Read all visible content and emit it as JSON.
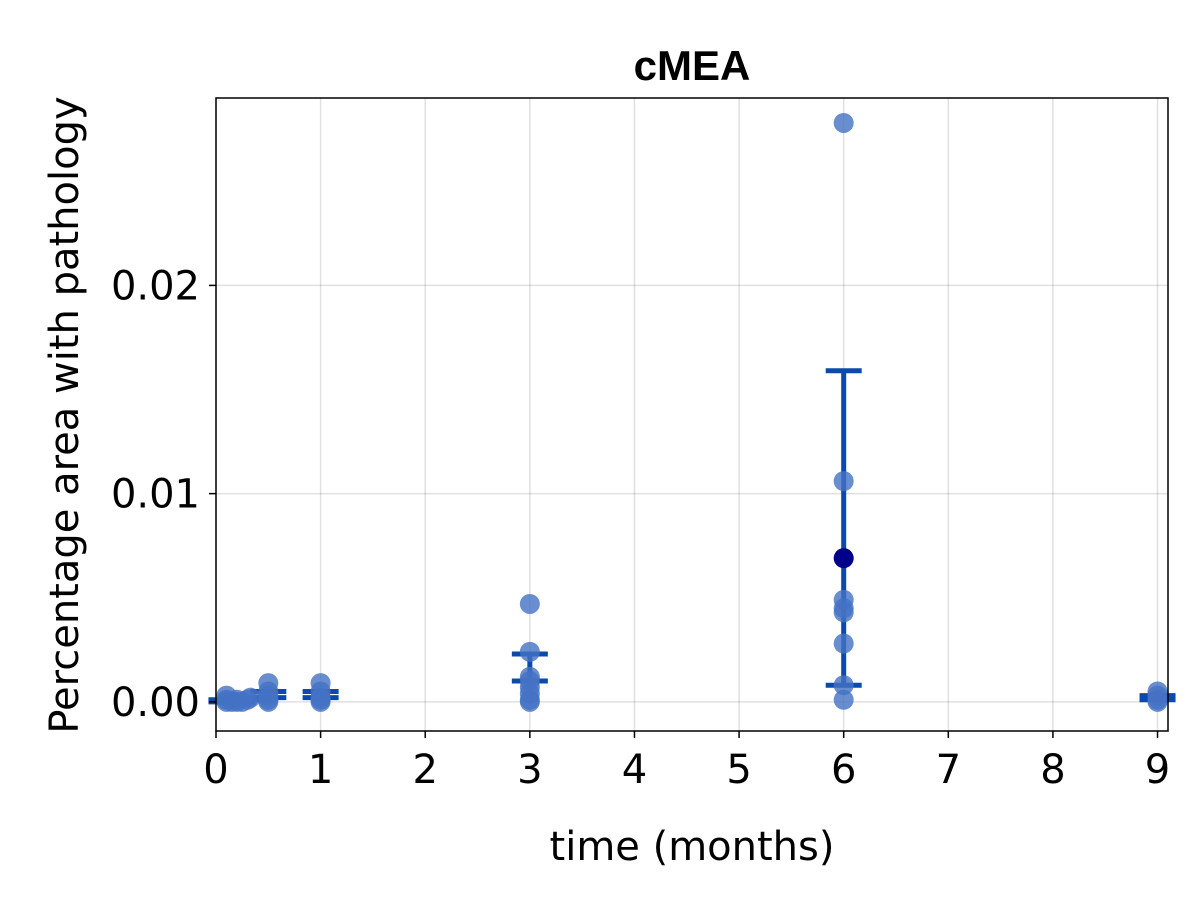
{
  "chart_data": {
    "type": "scatter",
    "title": "cMEA",
    "xlabel": "time (months)",
    "ylabel": "Percentage area with pathology",
    "xlim": [
      0,
      9.1
    ],
    "ylim": [
      -0.0014,
      0.029
    ],
    "xticks": [
      0,
      1,
      2,
      3,
      4,
      5,
      6,
      7,
      8,
      9
    ],
    "xtick_labels": [
      "0",
      "1",
      "2",
      "3",
      "4",
      "5",
      "6",
      "7",
      "8",
      "9"
    ],
    "yticks": [
      0.0,
      0.01,
      0.02
    ],
    "ytick_labels": [
      "0.00",
      "0.01",
      "0.02"
    ],
    "grid": true,
    "colors": {
      "points": "#4472c4",
      "highlight": "#00008b",
      "errorbars": "#0a4aad"
    },
    "points": [
      {
        "x": 0.1,
        "y": 0.0003
      },
      {
        "x": 0.1,
        "y": 0.0001
      },
      {
        "x": 0.1,
        "y": 0.0
      },
      {
        "x": 0.15,
        "y": 0.0
      },
      {
        "x": 0.2,
        "y": 0.0
      },
      {
        "x": 0.2,
        "y": 0.0001
      },
      {
        "x": 0.25,
        "y": 0.0
      },
      {
        "x": 0.3,
        "y": 0.0001
      },
      {
        "x": 0.33,
        "y": 0.0002
      },
      {
        "x": 0.5,
        "y": 0.0009
      },
      {
        "x": 0.5,
        "y": 0.0005
      },
      {
        "x": 0.5,
        "y": 0.0003
      },
      {
        "x": 0.5,
        "y": 0.0001
      },
      {
        "x": 0.5,
        "y": 0.0
      },
      {
        "x": 1,
        "y": 0.0009
      },
      {
        "x": 1,
        "y": 0.0005
      },
      {
        "x": 1,
        "y": 0.0002
      },
      {
        "x": 1,
        "y": 0.0001
      },
      {
        "x": 1,
        "y": 0.0
      },
      {
        "x": 3,
        "y": 0.0047
      },
      {
        "x": 3,
        "y": 0.0024
      },
      {
        "x": 3,
        "y": 0.0012
      },
      {
        "x": 3,
        "y": 0.001
      },
      {
        "x": 3,
        "y": 0.0007
      },
      {
        "x": 3,
        "y": 0.0004
      },
      {
        "x": 3,
        "y": 0.0001
      },
      {
        "x": 3,
        "y": 0.0
      },
      {
        "x": 6,
        "y": 0.0278
      },
      {
        "x": 6,
        "y": 0.0106
      },
      {
        "x": 6,
        "y": 0.0049
      },
      {
        "x": 6,
        "y": 0.0045
      },
      {
        "x": 6,
        "y": 0.0043
      },
      {
        "x": 6,
        "y": 0.0028
      },
      {
        "x": 6,
        "y": 0.0008
      },
      {
        "x": 6,
        "y": 0.0001
      },
      {
        "x": 9,
        "y": 0.0005
      },
      {
        "x": 9,
        "y": 0.0003
      },
      {
        "x": 9,
        "y": 0.0001
      },
      {
        "x": 9,
        "y": 0.0
      }
    ],
    "means": [
      {
        "x": 6,
        "y": 0.0069
      }
    ],
    "errorbars": [
      {
        "x": 0.1,
        "low": 0.0,
        "high": 0.0001
      },
      {
        "x": 0.2,
        "low": 0.0,
        "high": 0.0001
      },
      {
        "x": 0.3,
        "low": 0.0001,
        "high": 0.0002
      },
      {
        "x": 0.5,
        "low": 0.0002,
        "high": 0.0005
      },
      {
        "x": 1,
        "low": 0.0002,
        "high": 0.0005
      },
      {
        "x": 3,
        "low": 0.001,
        "high": 0.0023
      },
      {
        "x": 6,
        "low": 0.0008,
        "high": 0.0159
      },
      {
        "x": 9,
        "low": 0.0001,
        "high": 0.0003
      }
    ]
  }
}
